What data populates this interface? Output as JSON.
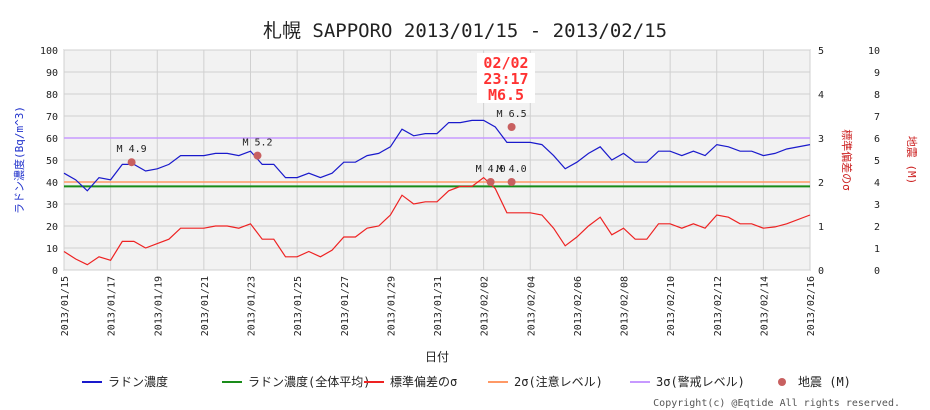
{
  "chart_data": {
    "type": "line",
    "title": "札幌 SAPPORO 2013/01/15 - 2013/02/15",
    "xlabel": "日付",
    "ylabel_left": "ラドン濃度(Bq/m^3)",
    "ylabel_right_sigma": "標準偏差のσ",
    "ylabel_right_quake": "地震 (M)",
    "x_ticks": [
      "2013/01/15",
      "2013/01/17",
      "2013/01/19",
      "2013/01/21",
      "2013/01/23",
      "2013/01/25",
      "2013/01/27",
      "2013/01/29",
      "2013/01/31",
      "2013/02/02",
      "2013/02/04",
      "2013/02/06",
      "2013/02/08",
      "2013/02/10",
      "2013/02/12",
      "2013/02/14",
      "2013/02/16"
    ],
    "x_range_days": [
      0,
      32
    ],
    "ylim_left": [
      0,
      100
    ],
    "yticks_left": [
      0,
      10,
      20,
      30,
      40,
      50,
      60,
      70,
      80,
      90,
      100
    ],
    "ylim_sigma": [
      0,
      5
    ],
    "yticks_sigma": [
      0,
      1,
      2,
      3,
      4,
      5
    ],
    "ylim_quake": [
      0,
      10
    ],
    "yticks_quake": [
      0,
      1,
      2,
      3,
      4,
      5,
      6,
      7,
      8,
      9,
      10
    ],
    "grid": true,
    "legend_placement": "bottom",
    "series": [
      {
        "name": "ラドン濃度",
        "color": "#1a1acc",
        "axis": "left",
        "points": [
          [
            0,
            44
          ],
          [
            0.5,
            41
          ],
          [
            1,
            36
          ],
          [
            1.5,
            42
          ],
          [
            2,
            41
          ],
          [
            2.5,
            48
          ],
          [
            3,
            48
          ],
          [
            3.5,
            45
          ],
          [
            4,
            46
          ],
          [
            4.5,
            48
          ],
          [
            5,
            52
          ],
          [
            5.5,
            52
          ],
          [
            6,
            52
          ],
          [
            6.5,
            53
          ],
          [
            7,
            53
          ],
          [
            7.5,
            52
          ],
          [
            8,
            54
          ],
          [
            8.5,
            48
          ],
          [
            9,
            48
          ],
          [
            9.5,
            42
          ],
          [
            10,
            42
          ],
          [
            10.5,
            44
          ],
          [
            11,
            42
          ],
          [
            11.5,
            44
          ],
          [
            12,
            49
          ],
          [
            12.5,
            49
          ],
          [
            13,
            52
          ],
          [
            13.5,
            53
          ],
          [
            14,
            56
          ],
          [
            14.5,
            64
          ],
          [
            15,
            61
          ],
          [
            15.5,
            62
          ],
          [
            16,
            62
          ],
          [
            16.5,
            67
          ],
          [
            17,
            67
          ],
          [
            17.5,
            68
          ],
          [
            18,
            68
          ],
          [
            18.5,
            65
          ],
          [
            19,
            58
          ],
          [
            19.5,
            58
          ],
          [
            20,
            58
          ],
          [
            20.5,
            57
          ],
          [
            21,
            52
          ],
          [
            21.5,
            46
          ],
          [
            22,
            49
          ],
          [
            22.5,
            53
          ],
          [
            23,
            56
          ],
          [
            23.5,
            50
          ],
          [
            24,
            53
          ],
          [
            24.5,
            49
          ],
          [
            25,
            49
          ],
          [
            25.5,
            54
          ],
          [
            26,
            54
          ],
          [
            26.5,
            52
          ],
          [
            27,
            54
          ],
          [
            27.5,
            52
          ],
          [
            28,
            57
          ],
          [
            28.5,
            56
          ],
          [
            29,
            54
          ],
          [
            29.5,
            54
          ],
          [
            30,
            52
          ],
          [
            30.5,
            53
          ],
          [
            31,
            55
          ],
          [
            32,
            57
          ]
        ]
      },
      {
        "name": "ラドン濃度(全体平均)",
        "color": "#1a8c1a",
        "axis": "left",
        "points": [
          [
            0,
            38
          ],
          [
            32,
            38
          ]
        ]
      },
      {
        "name": "標準偏差のσ",
        "color": "#ee2222",
        "axis": "sigma",
        "points": [
          [
            0,
            0.42
          ],
          [
            0.5,
            0.25
          ],
          [
            1,
            0.12
          ],
          [
            1.5,
            0.3
          ],
          [
            2,
            0.22
          ],
          [
            2.5,
            0.65
          ],
          [
            3,
            0.65
          ],
          [
            3.5,
            0.5
          ],
          [
            4,
            0.6
          ],
          [
            4.5,
            0.7
          ],
          [
            5,
            0.95
          ],
          [
            5.5,
            0.95
          ],
          [
            6,
            0.95
          ],
          [
            6.5,
            1.0
          ],
          [
            7,
            1.0
          ],
          [
            7.5,
            0.95
          ],
          [
            8,
            1.05
          ],
          [
            8.5,
            0.7
          ],
          [
            9,
            0.7
          ],
          [
            9.5,
            0.3
          ],
          [
            10,
            0.3
          ],
          [
            10.5,
            0.42
          ],
          [
            11,
            0.3
          ],
          [
            11.5,
            0.45
          ],
          [
            12,
            0.75
          ],
          [
            12.5,
            0.75
          ],
          [
            13,
            0.95
          ],
          [
            13.5,
            1.0
          ],
          [
            14,
            1.25
          ],
          [
            14.5,
            1.7
          ],
          [
            15,
            1.5
          ],
          [
            15.5,
            1.55
          ],
          [
            16,
            1.55
          ],
          [
            16.5,
            1.8
          ],
          [
            17,
            1.9
          ],
          [
            17.5,
            1.9
          ],
          [
            18,
            2.1
          ],
          [
            18.5,
            1.85
          ],
          [
            19,
            1.3
          ],
          [
            19.5,
            1.3
          ],
          [
            20,
            1.3
          ],
          [
            20.5,
            1.25
          ],
          [
            21,
            0.95
          ],
          [
            21.5,
            0.55
          ],
          [
            22,
            0.75
          ],
          [
            22.5,
            1.0
          ],
          [
            23,
            1.2
          ],
          [
            23.5,
            0.8
          ],
          [
            24,
            0.95
          ],
          [
            24.5,
            0.7
          ],
          [
            25,
            0.7
          ],
          [
            25.5,
            1.05
          ],
          [
            26,
            1.05
          ],
          [
            26.5,
            0.95
          ],
          [
            27,
            1.05
          ],
          [
            27.5,
            0.95
          ],
          [
            28,
            1.25
          ],
          [
            28.5,
            1.2
          ],
          [
            29,
            1.05
          ],
          [
            29.5,
            1.05
          ],
          [
            30,
            0.95
          ],
          [
            30.5,
            0.98
          ],
          [
            31,
            1.05
          ],
          [
            32,
            1.25
          ]
        ]
      },
      {
        "name": "2σ(注意レベル)",
        "color": "#ff9966",
        "axis": "sigma",
        "points": [
          [
            0,
            2
          ],
          [
            32,
            2
          ]
        ]
      },
      {
        "name": "3σ(警戒レベル)",
        "color": "#c799ff",
        "axis": "sigma",
        "points": [
          [
            0,
            3
          ],
          [
            32,
            3
          ]
        ]
      }
    ],
    "earthquakes": {
      "name": "地震 (M)",
      "color": "#c86060",
      "events": [
        {
          "x": 2.9,
          "magnitude": 4.9,
          "label": "M 4.9"
        },
        {
          "x": 8.3,
          "magnitude": 5.2,
          "label": "M 5.2"
        },
        {
          "x": 18.3,
          "magnitude": 4.0,
          "label": "M 4.0"
        },
        {
          "x": 19.2,
          "magnitude": 4.0,
          "label": "M 4.0"
        },
        {
          "x": 19.2,
          "magnitude": 6.5,
          "label": "M 6.5"
        }
      ]
    },
    "callout": {
      "lines": [
        "02/02",
        "23:17",
        "M6.5"
      ]
    }
  },
  "copyright": "Copyright(c) @Eqtide All rights reserved."
}
